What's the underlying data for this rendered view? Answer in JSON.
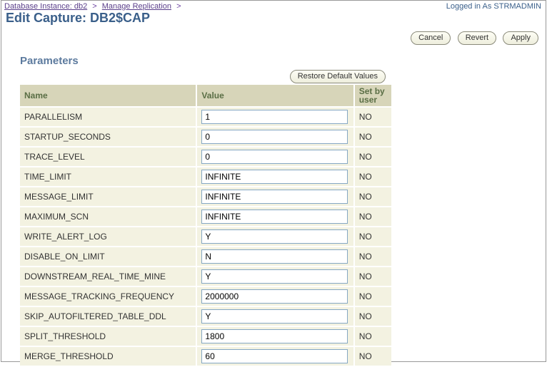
{
  "breadcrumb": {
    "item1": "Database Instance: db2",
    "item2": "Manage Replication",
    "sep": ">"
  },
  "login_label": "Logged in As STRMADMIN",
  "page_title": "Edit Capture: DB2$CAP",
  "buttons": {
    "cancel": "Cancel",
    "revert": "Revert",
    "apply": "Apply",
    "restore": "Restore Default Values"
  },
  "section_title": "Parameters",
  "table": {
    "headers": {
      "name": "Name",
      "value": "Value",
      "setby": "Set by user"
    },
    "rows": [
      {
        "name": "PARALLELISM",
        "value": "1",
        "setby": "NO"
      },
      {
        "name": "STARTUP_SECONDS",
        "value": "0",
        "setby": "NO"
      },
      {
        "name": "TRACE_LEVEL",
        "value": "0",
        "setby": "NO"
      },
      {
        "name": "TIME_LIMIT",
        "value": "INFINITE",
        "setby": "NO"
      },
      {
        "name": "MESSAGE_LIMIT",
        "value": "INFINITE",
        "setby": "NO"
      },
      {
        "name": "MAXIMUM_SCN",
        "value": "INFINITE",
        "setby": "NO"
      },
      {
        "name": "WRITE_ALERT_LOG",
        "value": "Y",
        "setby": "NO"
      },
      {
        "name": "DISABLE_ON_LIMIT",
        "value": "N",
        "setby": "NO"
      },
      {
        "name": "DOWNSTREAM_REAL_TIME_MINE",
        "value": "Y",
        "setby": "NO"
      },
      {
        "name": "MESSAGE_TRACKING_FREQUENCY",
        "value": "2000000",
        "setby": "NO"
      },
      {
        "name": "SKIP_AUTOFILTERED_TABLE_DDL",
        "value": "Y",
        "setby": "NO"
      },
      {
        "name": "SPLIT_THRESHOLD",
        "value": "1800",
        "setby": "NO"
      },
      {
        "name": "MERGE_THRESHOLD",
        "value": "60",
        "setby": "NO"
      }
    ]
  }
}
